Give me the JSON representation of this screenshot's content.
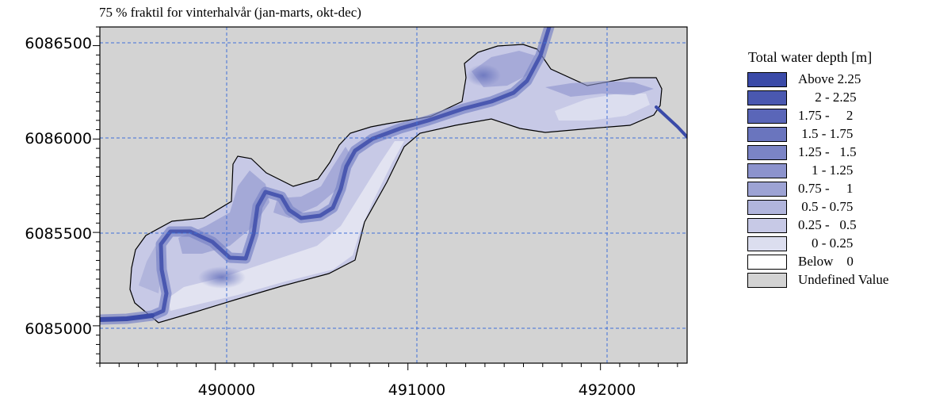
{
  "title": "75 % fraktil for vinterhalvår (jan-marts, okt-dec)",
  "map": {
    "x_ticks": [
      {
        "value": 490000,
        "label": "490000"
      },
      {
        "value": 491000,
        "label": "491000"
      },
      {
        "value": 492000,
        "label": "492000"
      }
    ],
    "y_ticks": [
      {
        "value": 6086500,
        "label": "6086500"
      },
      {
        "value": 6086000,
        "label": "6086000"
      },
      {
        "value": 6085500,
        "label": "6085500"
      },
      {
        "value": 6085000,
        "label": "6085000"
      }
    ],
    "x_range": [
      489400,
      492450
    ],
    "y_range": [
      6084800,
      6086600
    ],
    "grid": true,
    "background_color": "#d3d3d3"
  },
  "legend": {
    "title": "Total water depth [m]",
    "items": [
      {
        "label": "Above 2.25",
        "color": "#3a4aa8"
      },
      {
        "label": "     2 - 2.25",
        "color": "#4a58b0"
      },
      {
        "label": "1.75 -     2",
        "color": "#5a66b8"
      },
      {
        "label": " 1.5 - 1.75",
        "color": "#6a75be"
      },
      {
        "label": "1.25 -   1.5",
        "color": "#7b84c6"
      },
      {
        "label": "    1 - 1.25",
        "color": "#8c93cd"
      },
      {
        "label": "0.75 -     1",
        "color": "#9da3d4"
      },
      {
        "label": " 0.5 - 0.75",
        "color": "#b1b5dc"
      },
      {
        "label": "0.25 -   0.5",
        "color": "#c7c9e6"
      },
      {
        "label": "    0 - 0.25",
        "color": "#dcdeef"
      },
      {
        "label": "Below    0",
        "color": "#ffffff"
      },
      {
        "label": "Undefined Value",
        "color": "#d3d3d3"
      }
    ]
  }
}
